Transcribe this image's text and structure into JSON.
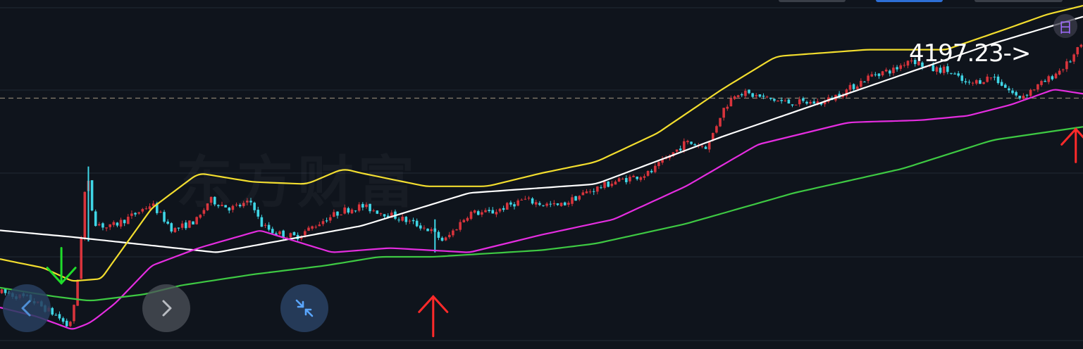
{
  "watermark": "东方财富",
  "price_label": "4197.23->",
  "calendar_icon_glyph": "日",
  "icons": {
    "prev": "chevron-left-icon",
    "next": "chevron-right-icon",
    "collapse": "collapse-arrows-icon",
    "calendar": "calendar-icon"
  },
  "colors": {
    "background": "#0f141c",
    "candle_up": "#d8343c",
    "candle_down": "#3fd6e6",
    "ma_white": "#ffffff",
    "ma_yellow": "#f2dd2e",
    "ma_magenta": "#e52de0",
    "ma_green": "#3ec943",
    "arrow_green": "#1fdc2a",
    "arrow_red": "#ff2a2a",
    "reference_line": "#8a8070"
  },
  "chart_data": {
    "type": "line",
    "title": "",
    "xlabel": "",
    "ylabel": "",
    "last_price": 4197.23,
    "reference_price": 3880,
    "ylim": [
      2780,
      4300
    ],
    "x_count": 300,
    "grid": true,
    "series": [
      {
        "key": "ma_white",
        "x": [
          0,
          20,
          60,
          100,
          130,
          165,
          200,
          240,
          275,
          300
        ],
        "values": [
          3280,
          3250,
          3180,
          3300,
          3450,
          3490,
          3705,
          3930,
          4128,
          4250
        ]
      },
      {
        "key": "ma_yellow",
        "x": [
          0,
          12,
          20,
          28,
          42,
          55,
          70,
          85,
          95,
          100,
          118,
          135,
          150,
          165,
          182,
          200,
          215,
          240,
          262,
          278,
          290,
          300
        ],
        "values": [
          3150,
          3110,
          3050,
          3060,
          3380,
          3540,
          3500,
          3490,
          3560,
          3540,
          3480,
          3480,
          3540,
          3590,
          3720,
          3920,
          4070,
          4100,
          4100,
          4190,
          4260,
          4300
        ]
      },
      {
        "key": "ma_magenta",
        "x": [
          0,
          10,
          20,
          25,
          32,
          42,
          55,
          72,
          92,
          108,
          130,
          150,
          170,
          190,
          210,
          235,
          255,
          268,
          280,
          292,
          300
        ],
        "values": [
          2930,
          2890,
          2830,
          2860,
          2950,
          3120,
          3200,
          3280,
          3180,
          3200,
          3180,
          3260,
          3330,
          3480,
          3670,
          3770,
          3780,
          3800,
          3850,
          3920,
          3900
        ]
      },
      {
        "key": "ma_green",
        "x": [
          0,
          15,
          25,
          40,
          50,
          70,
          90,
          105,
          120,
          150,
          165,
          190,
          220,
          250,
          275,
          300
        ],
        "values": [
          3020,
          2980,
          2960,
          2990,
          3030,
          3080,
          3120,
          3160,
          3160,
          3190,
          3220,
          3310,
          3450,
          3560,
          3690,
          3750
        ]
      }
    ],
    "candles_path": {
      "x": [
        0,
        8,
        16,
        19,
        21,
        24,
        26,
        30,
        36,
        42,
        48,
        55,
        58,
        64,
        70,
        72,
        76,
        82,
        90,
        95,
        100,
        110,
        118,
        120,
        123,
        130,
        136,
        145,
        150,
        155,
        162,
        170,
        180,
        190,
        196,
        200,
        204,
        212,
        218,
        228,
        235,
        242,
        248,
        252,
        258,
        262,
        268,
        275,
        282,
        290,
        296,
        300
      ],
      "values": [
        3000,
        2970,
        2890,
        2840,
        2960,
        3550,
        3320,
        3290,
        3340,
        3400,
        3280,
        3330,
        3420,
        3380,
        3410,
        3310,
        3270,
        3250,
        3330,
        3370,
        3390,
        3340,
        3290,
        3270,
        3230,
        3360,
        3360,
        3420,
        3400,
        3390,
        3450,
        3500,
        3540,
        3680,
        3660,
        3820,
        3910,
        3880,
        3860,
        3860,
        3920,
        3990,
        4010,
        4060,
        4010,
        4010,
        3940,
        3980,
        3880,
        3960,
        4040,
        4130
      ]
    },
    "annotations": [
      {
        "type": "arrow-down",
        "color": "arrow_green",
        "x": 17,
        "y_top": 3200,
        "y_bottom": 3040
      },
      {
        "type": "arrow-up",
        "color": "arrow_red",
        "x": 120,
        "y_top": 2980,
        "y_bottom": 2800
      },
      {
        "type": "arrow-up",
        "color": "arrow_red",
        "x": 298,
        "y_top": 3740,
        "y_bottom": 3590
      }
    ]
  }
}
